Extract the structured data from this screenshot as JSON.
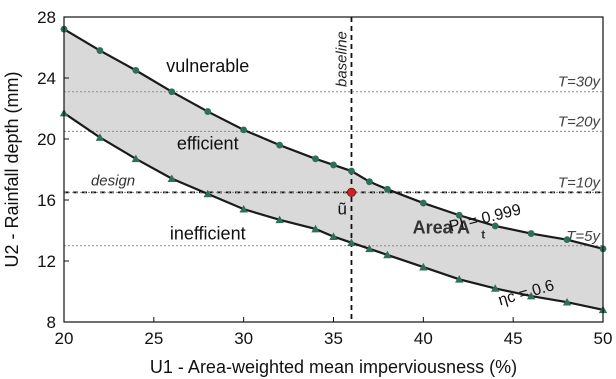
{
  "chart_data": {
    "type": "line",
    "xlabel": "U1 - Area-weighted mean imperviousness (%)",
    "ylabel": "U2 - Rainfall depth (mm)",
    "xlim": [
      20,
      50
    ],
    "ylim": [
      8,
      28
    ],
    "xticks": [
      20,
      25,
      30,
      35,
      40,
      45,
      50
    ],
    "yticks": [
      8,
      12,
      16,
      20,
      24,
      28
    ],
    "grid": false,
    "series": [
      {
        "name": "PI = 0.999",
        "marker": "circle",
        "x": [
          20,
          22,
          24,
          26,
          28,
          30,
          32,
          34,
          35,
          36,
          37,
          38,
          40,
          42,
          44,
          46,
          48,
          50
        ],
        "y": [
          27.2,
          25.8,
          24.5,
          23.1,
          21.8,
          20.6,
          19.6,
          18.7,
          18.3,
          17.9,
          17.2,
          16.7,
          15.8,
          15.0,
          14.3,
          13.8,
          13.4,
          12.8
        ]
      },
      {
        "name": "ηc = 0.6",
        "marker": "triangle",
        "x": [
          20,
          22,
          24,
          26,
          28,
          30,
          32,
          34,
          35,
          36,
          37,
          38,
          40,
          42,
          44,
          46,
          48,
          50
        ],
        "y": [
          21.7,
          20.1,
          18.7,
          17.4,
          16.4,
          15.4,
          14.7,
          14.1,
          13.6,
          13.2,
          12.8,
          12.4,
          11.6,
          10.8,
          10.2,
          9.7,
          9.3,
          8.8
        ]
      }
    ],
    "shaded_region": {
      "label": "Area A",
      "label_subscript": "t",
      "label_x": 41,
      "label_y": 13.8,
      "between": [
        "PI = 0.999",
        "ηc = 0.6"
      ],
      "color": "#d9d9d9"
    },
    "reference_lines": [
      {
        "orientation": "vertical",
        "value": 36,
        "label": "baseline",
        "style": "dashed"
      },
      {
        "orientation": "horizontal",
        "value": 16.5,
        "label": "design",
        "style": "dashed"
      },
      {
        "orientation": "horizontal",
        "value": 23.1,
        "label": "T=30y",
        "style": "dotted"
      },
      {
        "orientation": "horizontal",
        "value": 20.5,
        "label": "T=20y",
        "style": "dotted"
      },
      {
        "orientation": "horizontal",
        "value": 16.5,
        "label": "T=10y",
        "style": "dotted"
      },
      {
        "orientation": "horizontal",
        "value": 13.0,
        "label": "T=5y",
        "style": "dotted"
      }
    ],
    "point": {
      "x": 36,
      "y": 16.5,
      "label": "ũ",
      "color": "#cc2222"
    },
    "region_labels": [
      {
        "text": "vulnerable",
        "x": 28,
        "y": 24.4
      },
      {
        "text": "efficient",
        "x": 28,
        "y": 19.3
      },
      {
        "text": "inefficient",
        "x": 28,
        "y": 13.4
      }
    ],
    "curve_labels": [
      {
        "text": "PI = 0.999",
        "x": 43.5,
        "y": 14.5,
        "angle": -14
      },
      {
        "text": "ηc = 0.6",
        "x": 45.8,
        "y": 9.6,
        "angle": -16
      }
    ],
    "colors": {
      "curve": "#1a1a1a",
      "marker": "#2e6f57",
      "fill": "#d9d9d9",
      "point": "#cc2222",
      "ref_line": "#555555"
    }
  }
}
